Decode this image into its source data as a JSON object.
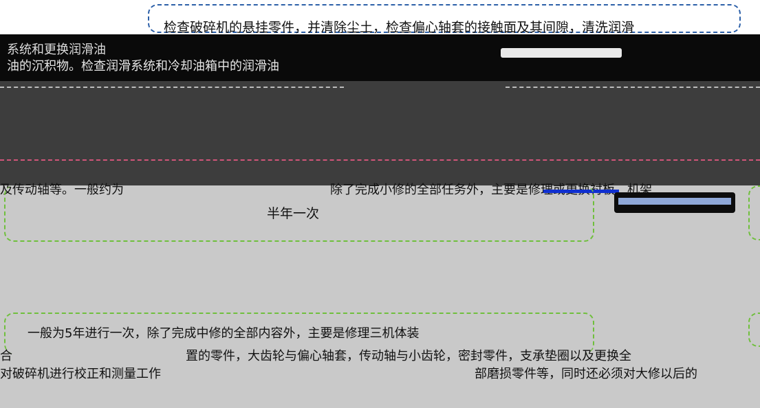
{
  "colors": {
    "top_box_border": "#2b5fa8",
    "green_box_border": "#6fbf3c",
    "pink_line": "#d2557a",
    "accent_blue": "#1030d0",
    "dark_band": "#3d3d3d",
    "gray_band": "#c9c9c9"
  },
  "top_note": {
    "line1": "检查破碎机的悬挂零件，并清除尘土，检查偏心轴套的接触面及其间隙，清洗润滑",
    "line2": "系统和更换润滑油",
    "line3": "油的沉积物。检查润滑系统和冷却油箱中的润滑油"
  },
  "minor_repair": {
    "text": "及传动轴等。一般约为",
    "text2": "除了完成小修的全部任务外，主要是修理或更换衬板、机架",
    "frequency": "半年一次"
  },
  "major_repair": {
    "line1": "一般为5年进行一次，除了完成中修的全部内容外，主要是修理三机体装",
    "line2_prefix": "合",
    "line2": "置的零件，大齿轮与偏心轴套，传动轴与小齿轮，密封零件，支承垫圈以及更换全",
    "line3": "对破碎机进行校正和测量工作",
    "line3b": "部磨损零件等，同时还必须对大修以后的"
  }
}
